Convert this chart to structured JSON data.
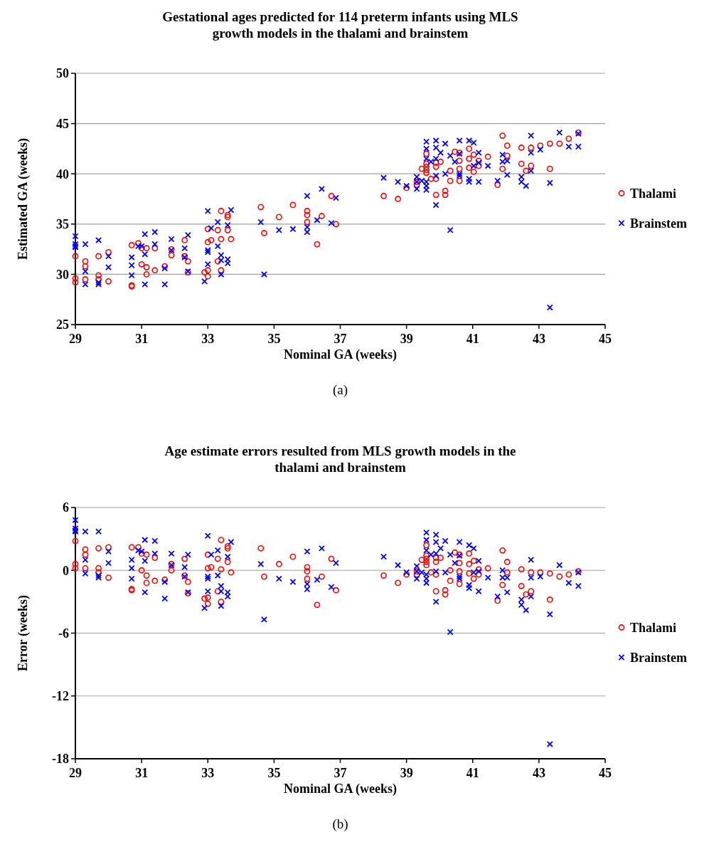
{
  "chart_data": [
    {
      "type": "scatter",
      "title": "Gestational ages predicted for 114 preterm infants using MLS growth models in the thalami and brainstem",
      "xlabel": "Nominal GA (weeks)",
      "ylabel": "Estimated GA (weeks)",
      "annotations": [
        "(a)"
      ],
      "xlim": [
        29,
        45
      ],
      "xticks": [
        29,
        31,
        33,
        35,
        37,
        39,
        41,
        43,
        45
      ],
      "ylim": [
        25,
        50
      ],
      "yticks": [
        25,
        30,
        35,
        40,
        45,
        50
      ],
      "grid": "y",
      "legend": "right",
      "series": [
        {
          "name": "Thalami",
          "color": "#ff0000",
          "marker": "circle",
          "x": [
            29,
            29,
            29,
            29.3,
            29.3,
            29.3,
            29.7,
            29.7,
            29.7,
            30,
            30,
            30.7,
            30.7,
            30.7,
            30.9,
            31,
            31,
            31.15,
            31.15,
            31.15,
            31.4,
            31.4,
            31.7,
            31.9,
            31.9,
            32.3,
            32.3,
            32.4,
            32.4,
            32.9,
            33,
            33,
            33,
            33,
            33.1,
            33.3,
            33.3,
            33.4,
            33.4,
            33.4,
            33.6,
            33.6,
            33.6,
            33.7,
            34.6,
            34.7,
            35.15,
            35.57,
            36,
            36,
            36,
            36.3,
            36.44,
            36.73,
            36.87,
            38.31,
            38.74,
            39,
            39.31,
            39.31,
            39.46,
            39.6,
            39.6,
            39.6,
            39.6,
            39.6,
            39.74,
            39.89,
            39.89,
            39.89,
            39.89,
            40.03,
            40.17,
            40.17,
            40.32,
            40.32,
            40.46,
            40.6,
            40.6,
            40.6,
            40.6,
            40.89,
            40.89,
            40.89,
            41.03,
            41.03,
            41.18,
            41.18,
            41.46,
            41.75,
            41.9,
            41.9,
            42.04,
            42.04,
            42.47,
            42.47,
            42.61,
            42.76,
            42.76,
            43.04,
            43.33,
            43.33,
            43.62,
            43.9,
            44.19
          ],
          "values": [
            31.8,
            29.6,
            29.2,
            31.3,
            30.8,
            29.5,
            31.8,
            29.9,
            29.5,
            32.2,
            29.3,
            32.9,
            28.9,
            28.8,
            33.1,
            32.6,
            31,
            32.6,
            30.7,
            30,
            32.6,
            30.4,
            30.8,
            32.5,
            31.9,
            33.4,
            31.8,
            31.3,
            30.2,
            30.2,
            34.5,
            33.2,
            30.4,
            29.8,
            33.4,
            34.4,
            31.3,
            36.3,
            33.5,
            30.4,
            35.9,
            35.7,
            34.4,
            33.5,
            36.7,
            34.1,
            35.7,
            36.9,
            36.3,
            35.9,
            35.2,
            33,
            35.8,
            37.8,
            35,
            37.8,
            37.5,
            38.6,
            39.2,
            38.9,
            40.5,
            42,
            41,
            40.7,
            40.4,
            40.1,
            39.5,
            41.1,
            40.7,
            39.5,
            37.9,
            41.2,
            38.3,
            37.9,
            40.3,
            39.3,
            42.2,
            42.1,
            41.3,
            40.5,
            39.3,
            42.5,
            41.5,
            40.6,
            41.9,
            40.2,
            41.3,
            40.8,
            41.7,
            38.9,
            43.8,
            40.5,
            42.8,
            41.8,
            42.6,
            41,
            40.3,
            42.6,
            40.8,
            42.8,
            43,
            40.5,
            43,
            43.5,
            44.1
          ]
        },
        {
          "name": "Brainstem",
          "color": "#0000ff",
          "marker": "cross",
          "x": [
            29,
            29,
            29,
            29,
            29.3,
            29.3,
            29.3,
            29.7,
            29.7,
            29.7,
            30,
            30,
            30.7,
            30.7,
            30.7,
            30.9,
            31,
            31.1,
            31.1,
            31.1,
            31.4,
            31.4,
            31.7,
            31.7,
            31.9,
            31.9,
            32.3,
            32.3,
            32.4,
            32.4,
            32.9,
            33,
            33,
            33,
            33,
            33.1,
            33.3,
            33.3,
            33.4,
            33.4,
            33.4,
            33.6,
            33.6,
            33.6,
            33.7,
            34.6,
            34.7,
            35.15,
            35.57,
            36,
            36,
            36,
            36.3,
            36.44,
            36.73,
            36.87,
            38.31,
            38.74,
            39,
            39.31,
            39.31,
            39.31,
            39.46,
            39.6,
            39.6,
            39.6,
            39.6,
            39.6,
            39.6,
            39.74,
            39.89,
            39.89,
            39.89,
            39.89,
            39.89,
            40.03,
            40.17,
            40.17,
            40.32,
            40.32,
            40.46,
            40.6,
            40.6,
            40.6,
            40.6,
            40.89,
            40.89,
            40.89,
            41.03,
            41.03,
            41.18,
            41.18,
            41.18,
            41.46,
            41.75,
            41.9,
            41.9,
            42.04,
            42.04,
            42.47,
            42.47,
            42.61,
            42.76,
            42.76,
            42.76,
            43.04,
            43.33,
            43.33,
            43.62,
            43.9,
            44.19,
            44.19
          ],
          "values": [
            33.8,
            33,
            32.8,
            32.7,
            33,
            30.3,
            29,
            33.4,
            29.2,
            29,
            31.8,
            30.7,
            31.7,
            30.9,
            29.9,
            32.8,
            32.8,
            34,
            32,
            29,
            34.2,
            33,
            30.6,
            29,
            33.5,
            32.4,
            32.6,
            31.7,
            33.9,
            30.3,
            29.3,
            36.3,
            32.4,
            32.2,
            31,
            34.6,
            35.2,
            32.8,
            31.9,
            31.4,
            30,
            34.9,
            31.5,
            31.1,
            36.4,
            35.2,
            30,
            34.4,
            34.5,
            37.8,
            34.7,
            34.2,
            35.4,
            38.5,
            35.1,
            37.6,
            39.6,
            39.2,
            38.8,
            39.7,
            39.2,
            38.5,
            39.3,
            43.2,
            42.5,
            41.5,
            39.2,
            38.8,
            38.4,
            41.2,
            43.3,
            42.6,
            41.5,
            39.8,
            36.9,
            42.1,
            43,
            40,
            41.8,
            34.4,
            41.2,
            43.3,
            42,
            40,
            39.8,
            43.3,
            39.5,
            39.2,
            43.1,
            40.8,
            42.1,
            41.1,
            39.2,
            40.8,
            39.3,
            41.9,
            41.2,
            41.3,
            39.9,
            39.7,
            39.2,
            38.8,
            43.8,
            42.1,
            40.3,
            42.4,
            39.1,
            26.7,
            44.1,
            42.7,
            44,
            42.7
          ]
        }
      ]
    },
    {
      "type": "scatter",
      "title": "Age estimate errors resulted from MLS growth models in the thalami and brainstem",
      "xlabel": "Nominal GA (weeks)",
      "ylabel": "Error (weeks)",
      "annotations": [
        "(b)"
      ],
      "xlim": [
        29,
        45
      ],
      "xticks": [
        29,
        31,
        33,
        35,
        37,
        39,
        41,
        43,
        45
      ],
      "ylim": [
        -18,
        6
      ],
      "yticks": [
        -18,
        -12,
        -6,
        0,
        6
      ],
      "grid": "y",
      "legend": "right",
      "series": [
        {
          "name": "Thalami",
          "color": "#ff0000",
          "marker": "circle",
          "x": [
            29,
            29,
            29,
            29.3,
            29.3,
            29.3,
            29.7,
            29.7,
            29.7,
            30,
            30,
            30.7,
            30.7,
            30.7,
            30.9,
            31,
            31,
            31.15,
            31.15,
            31.15,
            31.4,
            31.4,
            31.7,
            31.9,
            31.9,
            32.3,
            32.3,
            32.4,
            32.4,
            32.9,
            33,
            33,
            33,
            33,
            33.1,
            33.3,
            33.3,
            33.4,
            33.4,
            33.4,
            33.6,
            33.6,
            33.6,
            33.7,
            34.6,
            34.7,
            35.15,
            35.57,
            36,
            36,
            36,
            36.3,
            36.44,
            36.73,
            36.87,
            38.31,
            38.74,
            39,
            39.31,
            39.31,
            39.46,
            39.6,
            39.6,
            39.6,
            39.6,
            39.6,
            39.74,
            39.89,
            39.89,
            39.89,
            39.89,
            40.03,
            40.17,
            40.17,
            40.32,
            40.32,
            40.46,
            40.6,
            40.6,
            40.6,
            40.6,
            40.89,
            40.89,
            40.89,
            41.03,
            41.03,
            41.18,
            41.18,
            41.46,
            41.75,
            41.9,
            41.9,
            42.04,
            42.04,
            42.47,
            42.47,
            42.61,
            42.76,
            42.76,
            43.04,
            43.33,
            43.33,
            43.62,
            43.9,
            44.19
          ],
          "values": [
            2.8,
            0.6,
            0.2,
            2,
            1.5,
            0.2,
            2.1,
            0.2,
            -0.2,
            2.2,
            -0.7,
            2.2,
            -1.8,
            -1.9,
            2.2,
            1.6,
            0,
            1.5,
            -0.5,
            -1.2,
            1.2,
            -1,
            -0.9,
            0.6,
            0,
            1.1,
            -0.5,
            -1.1,
            -2.2,
            -2.7,
            1.5,
            0.2,
            -2.6,
            -3.2,
            0.3,
            1.1,
            -2,
            2.9,
            0.1,
            -3,
            2.3,
            2.1,
            0.8,
            -0.2,
            2.1,
            -0.6,
            0.6,
            1.3,
            0.3,
            -0.1,
            -0.8,
            -3.3,
            -0.6,
            1.1,
            -1.9,
            -0.5,
            -1.2,
            -0.4,
            -0.1,
            -0.4,
            1,
            2.4,
            1.4,
            1.1,
            0.8,
            0.5,
            -0.2,
            1.2,
            0.8,
            -0.4,
            -2,
            1.2,
            -1.9,
            -2.3,
            0,
            -1,
            1.7,
            1.5,
            0.7,
            -0.1,
            -1.3,
            1.6,
            0.6,
            -0.3,
            0.9,
            -0.8,
            0.1,
            -0.4,
            0.2,
            -2.9,
            1.9,
            -1.4,
            0.8,
            -0.2,
            0.1,
            -1.5,
            -2.3,
            -0.2,
            -2,
            -0.2,
            -0.3,
            -2.8,
            -0.6,
            -0.4,
            -0.1
          ]
        },
        {
          "name": "Brainstem",
          "color": "#0000ff",
          "marker": "cross",
          "x": [
            29,
            29,
            29,
            29,
            29.3,
            29.3,
            29.3,
            29.7,
            29.7,
            29.7,
            30,
            30,
            30.7,
            30.7,
            30.7,
            30.9,
            31,
            31.1,
            31.1,
            31.1,
            31.4,
            31.4,
            31.7,
            31.7,
            31.9,
            31.9,
            32.3,
            32.3,
            32.4,
            32.4,
            32.9,
            33,
            33,
            33,
            33,
            33.1,
            33.3,
            33.3,
            33.4,
            33.4,
            33.4,
            33.6,
            33.6,
            33.6,
            33.7,
            34.6,
            34.7,
            35.15,
            35.57,
            36,
            36,
            36,
            36.3,
            36.44,
            36.73,
            36.87,
            38.31,
            38.74,
            39,
            39.31,
            39.31,
            39.31,
            39.46,
            39.6,
            39.6,
            39.6,
            39.6,
            39.6,
            39.6,
            39.74,
            39.89,
            39.89,
            39.89,
            39.89,
            39.89,
            40.03,
            40.17,
            40.17,
            40.32,
            40.32,
            40.46,
            40.6,
            40.6,
            40.6,
            40.6,
            40.89,
            40.89,
            40.89,
            41.03,
            41.03,
            41.18,
            41.18,
            41.18,
            41.46,
            41.75,
            41.9,
            41.9,
            42.04,
            42.04,
            42.47,
            42.47,
            42.61,
            42.76,
            42.76,
            42.76,
            43.04,
            43.33,
            43.33,
            43.62,
            43.9,
            44.19,
            44.19
          ],
          "values": [
            4.8,
            4,
            3.8,
            3.7,
            3.7,
            1,
            -0.3,
            3.7,
            -0.5,
            -0.7,
            1.8,
            0.7,
            1,
            0.2,
            -0.8,
            1.9,
            1.8,
            2.9,
            0.9,
            -2.1,
            2.8,
            1.6,
            -1.1,
            -2.7,
            1.6,
            0.5,
            0.3,
            -0.6,
            1.5,
            -2.1,
            -3.6,
            3.3,
            -0.6,
            -0.8,
            -2,
            1.5,
            1.9,
            -0.5,
            -1.5,
            -2,
            -3.4,
            1.3,
            -2.1,
            -2.5,
            2.7,
            0.6,
            -4.7,
            -0.8,
            -1.1,
            1.8,
            -1.3,
            -1.8,
            -0.9,
            2.1,
            -1.6,
            0.7,
            1.3,
            0.5,
            -0.2,
            0.4,
            -0.1,
            -0.8,
            -0.2,
            3.6,
            2.9,
            1.9,
            -0.4,
            -0.8,
            -1.2,
            1.5,
            3.4,
            2.7,
            1.6,
            -0.1,
            -3,
            2.1,
            2.8,
            -0.2,
            1.5,
            -5.9,
            0.7,
            2.7,
            1.4,
            -0.6,
            -0.8,
            2.4,
            -1.4,
            -1.7,
            2.1,
            -0.2,
            0.9,
            -0.1,
            -2,
            -0.7,
            -2.5,
            0,
            -0.7,
            -0.7,
            -2.1,
            -2.8,
            -3.3,
            -3.8,
            1,
            -0.7,
            -2.5,
            -0.6,
            -4.2,
            -16.6,
            0.5,
            -1.2,
            -0.2,
            -1.5
          ]
        }
      ]
    }
  ]
}
